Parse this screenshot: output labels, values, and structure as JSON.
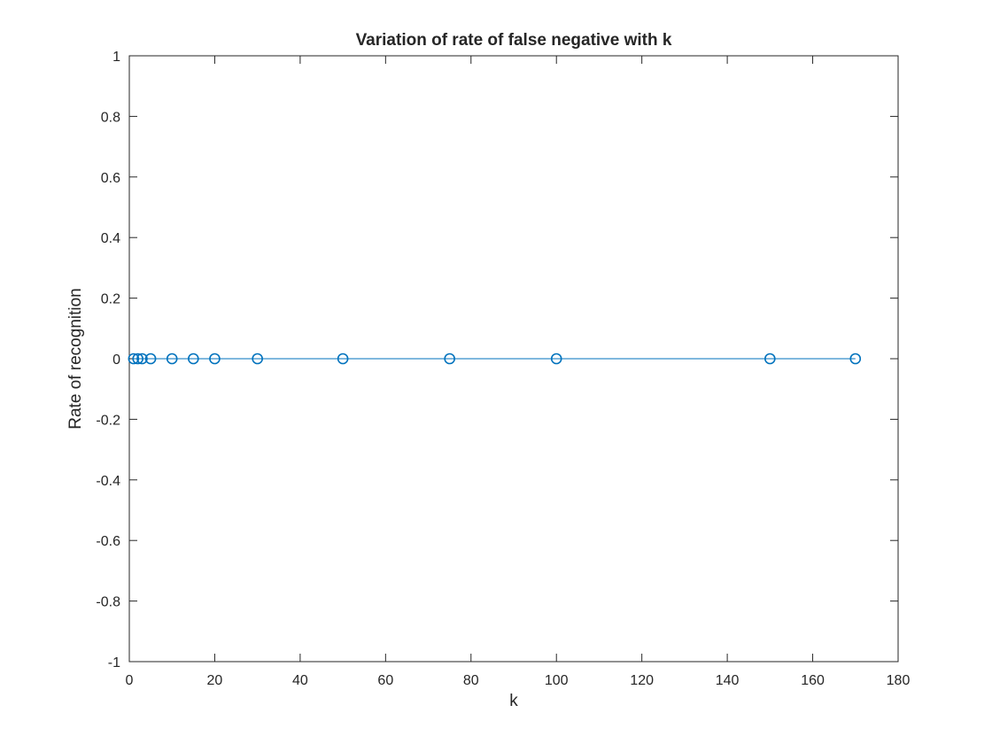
{
  "chart_data": {
    "type": "line",
    "title": "Variation of rate of false negative with k",
    "xlabel": "k",
    "ylabel": "Rate of recognition",
    "xlim": [
      0,
      180
    ],
    "ylim": [
      -1,
      1
    ],
    "xticks": [
      0,
      20,
      40,
      60,
      80,
      100,
      120,
      140,
      160,
      180
    ],
    "yticks": [
      -1,
      -0.8,
      -0.6,
      -0.4,
      -0.2,
      0,
      0.2,
      0.4,
      0.6,
      0.8,
      1
    ],
    "xtick_labels": [
      "0",
      "20",
      "40",
      "60",
      "80",
      "100",
      "120",
      "140",
      "160",
      "180"
    ],
    "ytick_labels": [
      "-1",
      "-0.8",
      "-0.6",
      "-0.4",
      "-0.2",
      "0",
      "0.2",
      "0.4",
      "0.6",
      "0.8",
      "1"
    ],
    "grid": false,
    "box": true,
    "marker": "circle",
    "series": [
      {
        "color": "#0072BD",
        "x": [
          1,
          2,
          3,
          5,
          10,
          15,
          20,
          30,
          50,
          75,
          100,
          150,
          170
        ],
        "y": [
          0,
          0,
          0,
          0,
          0,
          0,
          0,
          0,
          0,
          0,
          0,
          0,
          0
        ]
      }
    ]
  }
}
